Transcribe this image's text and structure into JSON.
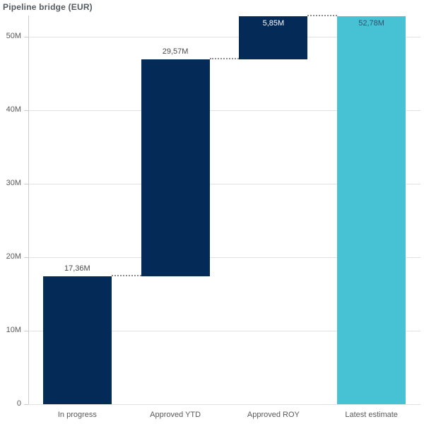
{
  "chart_data": {
    "type": "bar",
    "subtype": "waterfall",
    "title": "Pipeline bridge (EUR)",
    "categories": [
      "In progress",
      "Approved YTD",
      "Approved ROY",
      "Latest estimate"
    ],
    "values": [
      17.36,
      29.57,
      5.85,
      52.78
    ],
    "roles": [
      "change",
      "change",
      "change",
      "total"
    ],
    "cumulative_tops": [
      17.36,
      46.93,
      52.78,
      52.78
    ],
    "value_labels": [
      "17,36M",
      "29,57M",
      "5,85M",
      "52,78M"
    ],
    "label_placement": [
      "above",
      "above",
      "inside",
      "inside"
    ],
    "label_color_mode": [
      "dark",
      "dark",
      "light",
      "dark"
    ],
    "xlabel": "",
    "ylabel": "",
    "ylim": [
      0,
      52.78
    ],
    "yticks": [
      0,
      10,
      20,
      30,
      40,
      50
    ],
    "ytick_labels": [
      "0",
      "10M",
      "20M",
      "30M",
      "40M",
      "50M"
    ],
    "grid": true,
    "legend": false,
    "connector_style": "dotted",
    "colors": {
      "change_bar": "#042a58",
      "total_bar": "#46c2d4",
      "gridline": "#e2e2e2",
      "axis_line": "#cccccc",
      "tick_text": "#595959",
      "outside_label_text": "#4a4a4a",
      "inside_label_light": "#ffffff",
      "inside_label_dark": "#35506b",
      "connector": "#8c8c8c",
      "title_text": "#545a5f"
    }
  }
}
